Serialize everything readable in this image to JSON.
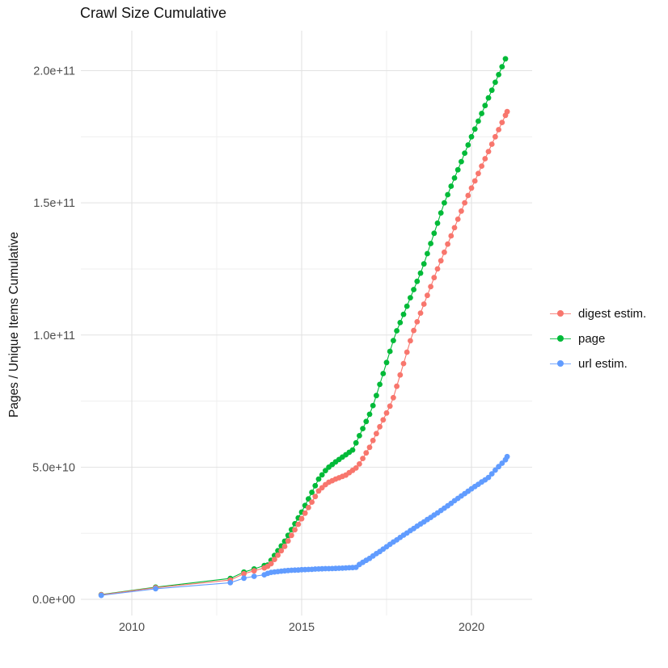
{
  "title": "Crawl Size Cumulative",
  "chart_data": {
    "type": "line",
    "title": "Crawl Size Cumulative",
    "xlabel": "",
    "ylabel": "Pages / Unique Items Cumulative",
    "x_ticks": [
      2010,
      2015,
      2020
    ],
    "y_ticks": [
      {
        "label": "0.0e+00",
        "value_e9": 0
      },
      {
        "label": "5.0e+10",
        "value_e9": 50
      },
      {
        "label": "1.0e+11",
        "value_e9": 100
      },
      {
        "label": "1.5e+11",
        "value_e9": 150
      },
      {
        "label": "2.0e+11",
        "value_e9": 200
      }
    ],
    "xlim": [
      2008.5,
      2021.8
    ],
    "ylim_e9": [
      -6,
      215
    ],
    "grid": true,
    "legend_position": "right",
    "units": "y values in billions of pages/items (1e9)",
    "series": [
      {
        "name": "digest estim.",
        "color": "#F8766D",
        "points": [
          [
            2009.1,
            1.7
          ],
          [
            2010.7,
            4.4
          ],
          [
            2012.9,
            7.3
          ],
          [
            2013.3,
            9.7
          ],
          [
            2013.6,
            10.8
          ],
          [
            2013.9,
            11.9
          ],
          [
            2014.0,
            12.5
          ],
          [
            2014.1,
            13.5
          ],
          [
            2014.2,
            15.1
          ],
          [
            2014.3,
            16.7
          ],
          [
            2014.4,
            18.4
          ],
          [
            2014.5,
            20.0
          ],
          [
            2014.6,
            22.1
          ],
          [
            2014.7,
            24.2
          ],
          [
            2014.8,
            26.3
          ],
          [
            2014.9,
            28.4
          ],
          [
            2015.0,
            30.5
          ],
          [
            2015.1,
            32.6
          ],
          [
            2015.2,
            34.7
          ],
          [
            2015.3,
            36.8
          ],
          [
            2015.4,
            38.9
          ],
          [
            2015.5,
            41.0
          ],
          [
            2015.6,
            42.2
          ],
          [
            2015.7,
            43.4
          ],
          [
            2015.8,
            44.3
          ],
          [
            2015.9,
            44.9
          ],
          [
            2016.0,
            45.5
          ],
          [
            2016.1,
            46.0
          ],
          [
            2016.2,
            46.5
          ],
          [
            2016.3,
            47.0
          ],
          [
            2016.4,
            47.9
          ],
          [
            2016.5,
            48.8
          ],
          [
            2016.6,
            49.7
          ],
          [
            2016.7,
            51.2
          ],
          [
            2016.8,
            53.3
          ],
          [
            2016.9,
            55.4
          ],
          [
            2017.0,
            57.5
          ],
          [
            2017.1,
            60.1
          ],
          [
            2017.2,
            62.7
          ],
          [
            2017.3,
            65.3
          ],
          [
            2017.4,
            67.9
          ],
          [
            2017.5,
            70.5
          ],
          [
            2017.6,
            73.1
          ],
          [
            2017.7,
            76.3
          ],
          [
            2017.8,
            80.6
          ],
          [
            2017.9,
            84.9
          ],
          [
            2018.0,
            89.2
          ],
          [
            2018.1,
            93.5
          ],
          [
            2018.2,
            97.8
          ],
          [
            2018.3,
            101.7
          ],
          [
            2018.4,
            105.0
          ],
          [
            2018.5,
            108.3
          ],
          [
            2018.6,
            111.7
          ],
          [
            2018.7,
            115.0
          ],
          [
            2018.8,
            118.3
          ],
          [
            2018.9,
            121.7
          ],
          [
            2019.0,
            125.0
          ],
          [
            2019.1,
            128.1
          ],
          [
            2019.2,
            131.3
          ],
          [
            2019.3,
            134.4
          ],
          [
            2019.4,
            137.5
          ],
          [
            2019.5,
            140.6
          ],
          [
            2019.6,
            143.8
          ],
          [
            2019.7,
            146.9
          ],
          [
            2019.8,
            150.0
          ],
          [
            2019.9,
            152.8
          ],
          [
            2020.0,
            155.6
          ],
          [
            2020.1,
            158.3
          ],
          [
            2020.2,
            161.1
          ],
          [
            2020.3,
            163.9
          ],
          [
            2020.4,
            166.7
          ],
          [
            2020.5,
            169.4
          ],
          [
            2020.6,
            172.2
          ],
          [
            2020.7,
            175.0
          ],
          [
            2020.8,
            177.7
          ],
          [
            2020.9,
            180.4
          ],
          [
            2021.0,
            183.1
          ],
          [
            2021.05,
            184.5
          ]
        ]
      },
      {
        "name": "page",
        "color": "#00BA38",
        "points": [
          [
            2009.1,
            1.8
          ],
          [
            2010.7,
            4.6
          ],
          [
            2012.9,
            7.9
          ],
          [
            2013.3,
            10.3
          ],
          [
            2013.6,
            11.5
          ],
          [
            2013.9,
            12.8
          ],
          [
            2014.0,
            13.0
          ],
          [
            2014.1,
            14.8
          ],
          [
            2014.2,
            16.6
          ],
          [
            2014.3,
            18.4
          ],
          [
            2014.4,
            20.2
          ],
          [
            2014.5,
            22.0
          ],
          [
            2014.6,
            24.2
          ],
          [
            2014.7,
            26.4
          ],
          [
            2014.8,
            28.6
          ],
          [
            2014.9,
            30.8
          ],
          [
            2015.0,
            33.0
          ],
          [
            2015.1,
            35.5
          ],
          [
            2015.2,
            38.0
          ],
          [
            2015.3,
            40.5
          ],
          [
            2015.4,
            43.0
          ],
          [
            2015.5,
            45.5
          ],
          [
            2015.6,
            47.1
          ],
          [
            2015.7,
            48.7
          ],
          [
            2015.8,
            50.0
          ],
          [
            2015.9,
            51.0
          ],
          [
            2016.0,
            52.0
          ],
          [
            2016.1,
            52.9
          ],
          [
            2016.2,
            53.8
          ],
          [
            2016.3,
            54.7
          ],
          [
            2016.4,
            55.6
          ],
          [
            2016.5,
            56.5
          ],
          [
            2016.6,
            59.2
          ],
          [
            2016.7,
            61.9
          ],
          [
            2016.8,
            64.6
          ],
          [
            2016.9,
            67.3
          ],
          [
            2017.0,
            70.0
          ],
          [
            2017.1,
            73.3
          ],
          [
            2017.2,
            77.1
          ],
          [
            2017.3,
            81.3
          ],
          [
            2017.4,
            85.4
          ],
          [
            2017.5,
            89.6
          ],
          [
            2017.6,
            93.8
          ],
          [
            2017.7,
            97.9
          ],
          [
            2017.8,
            101.6
          ],
          [
            2017.9,
            104.7
          ],
          [
            2018.0,
            107.8
          ],
          [
            2018.1,
            110.9
          ],
          [
            2018.2,
            114.1
          ],
          [
            2018.3,
            117.2
          ],
          [
            2018.4,
            120.3
          ],
          [
            2018.5,
            123.4
          ],
          [
            2018.6,
            126.9
          ],
          [
            2018.7,
            130.8
          ],
          [
            2018.8,
            134.6
          ],
          [
            2018.9,
            138.5
          ],
          [
            2019.0,
            142.3
          ],
          [
            2019.1,
            146.2
          ],
          [
            2019.2,
            150.0
          ],
          [
            2019.3,
            153.1
          ],
          [
            2019.4,
            156.3
          ],
          [
            2019.5,
            159.4
          ],
          [
            2019.6,
            162.5
          ],
          [
            2019.7,
            165.6
          ],
          [
            2019.8,
            168.8
          ],
          [
            2019.9,
            171.9
          ],
          [
            2020.0,
            175.0
          ],
          [
            2020.1,
            177.9
          ],
          [
            2020.2,
            180.9
          ],
          [
            2020.3,
            183.8
          ],
          [
            2020.4,
            186.8
          ],
          [
            2020.5,
            189.7
          ],
          [
            2020.6,
            192.6
          ],
          [
            2020.7,
            195.6
          ],
          [
            2020.8,
            198.5
          ],
          [
            2020.9,
            201.5
          ],
          [
            2021.0,
            204.5
          ]
        ]
      },
      {
        "name": "url estim.",
        "color": "#619CFF",
        "points": [
          [
            2009.1,
            1.5
          ],
          [
            2010.7,
            4.0
          ],
          [
            2012.9,
            6.3
          ],
          [
            2013.3,
            8.0
          ],
          [
            2013.6,
            8.7
          ],
          [
            2013.9,
            9.3
          ],
          [
            2014.0,
            9.8
          ],
          [
            2014.1,
            10.2
          ],
          [
            2014.2,
            10.35
          ],
          [
            2014.3,
            10.5
          ],
          [
            2014.4,
            10.65
          ],
          [
            2014.5,
            10.8
          ],
          [
            2014.6,
            10.9
          ],
          [
            2014.7,
            11.0
          ],
          [
            2014.8,
            11.05
          ],
          [
            2014.9,
            11.1
          ],
          [
            2015.0,
            11.2
          ],
          [
            2015.1,
            11.25
          ],
          [
            2015.2,
            11.3
          ],
          [
            2015.3,
            11.35
          ],
          [
            2015.4,
            11.45
          ],
          [
            2015.5,
            11.5
          ],
          [
            2015.6,
            11.55
          ],
          [
            2015.7,
            11.6
          ],
          [
            2015.8,
            11.6
          ],
          [
            2015.9,
            11.65
          ],
          [
            2016.0,
            11.7
          ],
          [
            2016.1,
            11.75
          ],
          [
            2016.2,
            11.8
          ],
          [
            2016.3,
            11.9
          ],
          [
            2016.4,
            11.95
          ],
          [
            2016.5,
            12.0
          ],
          [
            2016.6,
            12.1
          ],
          [
            2016.7,
            13.2
          ],
          [
            2016.8,
            14.0
          ],
          [
            2016.9,
            14.75
          ],
          [
            2017.0,
            15.5
          ],
          [
            2017.1,
            16.4
          ],
          [
            2017.2,
            17.3
          ],
          [
            2017.3,
            18.1
          ],
          [
            2017.4,
            19.0
          ],
          [
            2017.5,
            19.9
          ],
          [
            2017.6,
            20.8
          ],
          [
            2017.7,
            21.7
          ],
          [
            2017.8,
            22.5
          ],
          [
            2017.9,
            23.4
          ],
          [
            2018.0,
            24.3
          ],
          [
            2018.1,
            25.1
          ],
          [
            2018.2,
            26.0
          ],
          [
            2018.3,
            26.8
          ],
          [
            2018.4,
            27.7
          ],
          [
            2018.5,
            28.5
          ],
          [
            2018.6,
            29.3
          ],
          [
            2018.7,
            30.2
          ],
          [
            2018.8,
            31.0
          ],
          [
            2018.9,
            31.9
          ],
          [
            2019.0,
            32.7
          ],
          [
            2019.1,
            33.6
          ],
          [
            2019.2,
            34.5
          ],
          [
            2019.3,
            35.4
          ],
          [
            2019.4,
            36.3
          ],
          [
            2019.5,
            37.3
          ],
          [
            2019.6,
            38.2
          ],
          [
            2019.7,
            39.1
          ],
          [
            2019.8,
            40.0
          ],
          [
            2019.9,
            40.9
          ],
          [
            2020.0,
            41.8
          ],
          [
            2020.1,
            42.7
          ],
          [
            2020.2,
            43.5
          ],
          [
            2020.3,
            44.4
          ],
          [
            2020.4,
            45.2
          ],
          [
            2020.5,
            46.1
          ],
          [
            2020.6,
            47.5
          ],
          [
            2020.7,
            48.9
          ],
          [
            2020.8,
            50.2
          ],
          [
            2020.9,
            51.5
          ],
          [
            2021.0,
            52.8
          ],
          [
            2021.05,
            54.0
          ]
        ]
      }
    ]
  },
  "colors": {
    "background": "#FFFFFF",
    "grid_major": "#E2E2E2",
    "grid_minor": "#EFEFEF",
    "axis_text": "#4D4D4D",
    "title_text": "#111111"
  }
}
